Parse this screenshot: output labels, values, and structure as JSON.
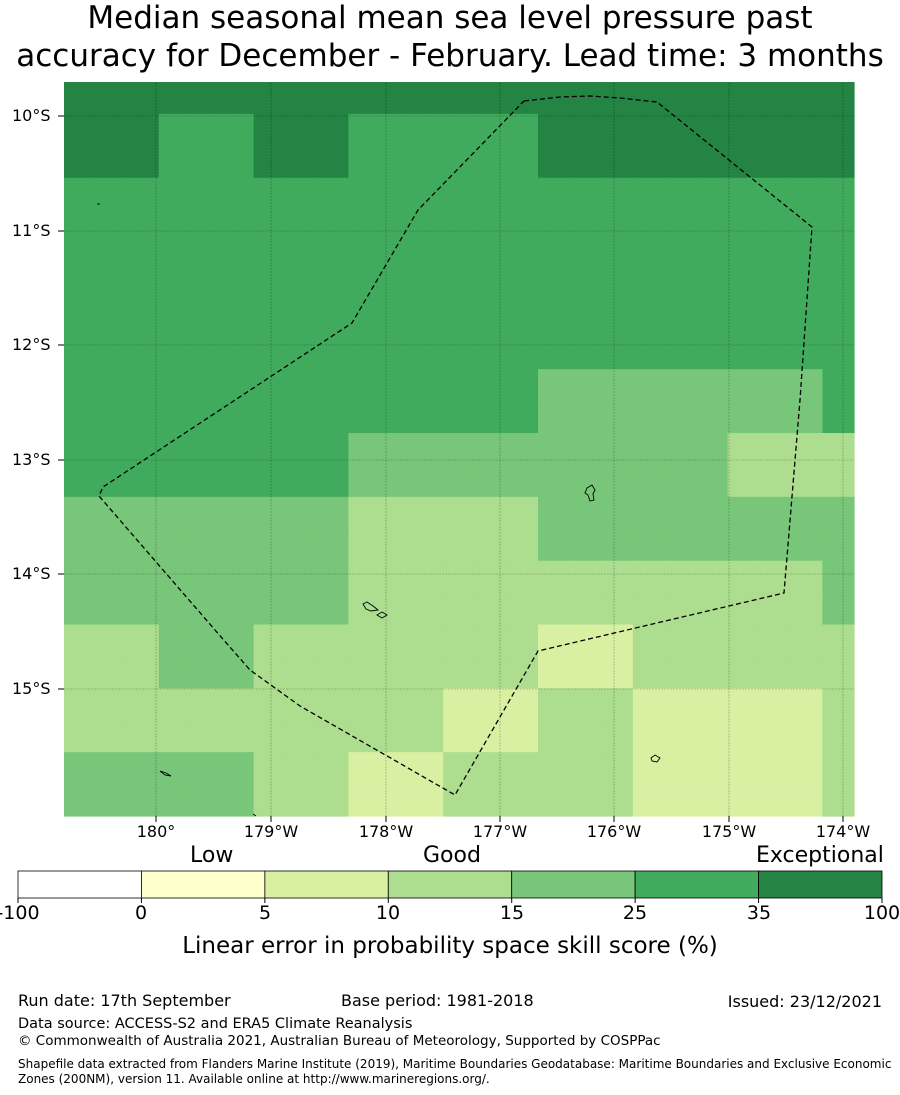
{
  "title": {
    "line1": "Median seasonal mean sea level pressure past",
    "line2": "accuracy for December - February. Lead time: 3 months"
  },
  "map": {
    "lat_labels": [
      "10°S",
      "11°S",
      "12°S",
      "13°S",
      "14°S",
      "15°S"
    ],
    "lon_labels": [
      "180°",
      "179°W",
      "178°W",
      "177°W",
      "176°W",
      "175°W",
      "174°W"
    ],
    "grid": [
      [
        6,
        6,
        6,
        6,
        6,
        6,
        6,
        6,
        6,
        6,
        6,
        6,
        6,
        6,
        6,
        6,
        6,
        6,
        6,
        6,
        6,
        6,
        6,
        6,
        6
      ],
      [
        6,
        6,
        6,
        5,
        5,
        5,
        6,
        6,
        6,
        5,
        5,
        5,
        5,
        5,
        5,
        6,
        6,
        6,
        6,
        6,
        6,
        6,
        6,
        6,
        6
      ],
      [
        6,
        6,
        6,
        5,
        5,
        5,
        6,
        6,
        6,
        5,
        5,
        5,
        5,
        5,
        5,
        6,
        6,
        6,
        6,
        6,
        6,
        6,
        6,
        6,
        6
      ],
      [
        5,
        5,
        5,
        5,
        5,
        5,
        5,
        5,
        5,
        5,
        5,
        5,
        5,
        5,
        5,
        5,
        5,
        5,
        5,
        5,
        5,
        5,
        5,
        5,
        5
      ],
      [
        5,
        5,
        5,
        5,
        5,
        5,
        5,
        5,
        5,
        5,
        5,
        5,
        5,
        5,
        5,
        5,
        5,
        5,
        5,
        5,
        5,
        5,
        5,
        5,
        5
      ],
      [
        5,
        5,
        5,
        5,
        5,
        5,
        5,
        5,
        5,
        5,
        5,
        5,
        5,
        5,
        5,
        5,
        5,
        5,
        5,
        5,
        5,
        5,
        5,
        5,
        5
      ],
      [
        5,
        5,
        5,
        5,
        5,
        5,
        5,
        5,
        5,
        5,
        5,
        5,
        5,
        5,
        5,
        5,
        5,
        5,
        5,
        5,
        5,
        5,
        5,
        5,
        5
      ],
      [
        5,
        5,
        5,
        5,
        5,
        5,
        5,
        5,
        5,
        5,
        5,
        5,
        5,
        5,
        5,
        5,
        5,
        5,
        5,
        5,
        5,
        5,
        5,
        5,
        5
      ],
      [
        5,
        5,
        5,
        5,
        5,
        5,
        5,
        5,
        5,
        5,
        5,
        5,
        5,
        5,
        5,
        5,
        5,
        5,
        5,
        5,
        5,
        5,
        5,
        5,
        5
      ],
      [
        5,
        5,
        5,
        5,
        5,
        5,
        5,
        5,
        5,
        5,
        5,
        5,
        5,
        5,
        5,
        4,
        4,
        4,
        4,
        4,
        4,
        4,
        4,
        4,
        5
      ],
      [
        5,
        5,
        5,
        5,
        5,
        5,
        5,
        5,
        5,
        5,
        5,
        5,
        5,
        5,
        5,
        4,
        4,
        4,
        4,
        4,
        4,
        4,
        4,
        4,
        5
      ],
      [
        5,
        5,
        5,
        5,
        5,
        5,
        5,
        5,
        5,
        4,
        4,
        4,
        4,
        4,
        4,
        4,
        4,
        4,
        4,
        4,
        4,
        3,
        3,
        3,
        3
      ],
      [
        5,
        5,
        5,
        5,
        5,
        5,
        5,
        5,
        5,
        4,
        4,
        4,
        4,
        4,
        4,
        4,
        4,
        4,
        4,
        4,
        4,
        3,
        3,
        3,
        3
      ],
      [
        4,
        4,
        4,
        4,
        4,
        4,
        4,
        4,
        4,
        3,
        3,
        3,
        3,
        3,
        3,
        4,
        4,
        4,
        4,
        4,
        4,
        4,
        4,
        4,
        4
      ],
      [
        4,
        4,
        4,
        4,
        4,
        4,
        4,
        4,
        4,
        3,
        3,
        3,
        3,
        3,
        3,
        4,
        4,
        4,
        4,
        4,
        4,
        4,
        4,
        4,
        4
      ],
      [
        4,
        4,
        4,
        4,
        4,
        4,
        4,
        4,
        4,
        3,
        3,
        3,
        3,
        3,
        3,
        3,
        3,
        3,
        3,
        3,
        3,
        3,
        3,
        3,
        4
      ],
      [
        4,
        4,
        4,
        4,
        4,
        4,
        4,
        4,
        4,
        3,
        3,
        3,
        3,
        3,
        3,
        3,
        3,
        3,
        3,
        3,
        3,
        3,
        3,
        3,
        4
      ],
      [
        3,
        3,
        3,
        4,
        4,
        4,
        3,
        3,
        3,
        3,
        3,
        3,
        3,
        3,
        3,
        2,
        2,
        2,
        3,
        3,
        3,
        3,
        3,
        3,
        3
      ],
      [
        3,
        3,
        3,
        4,
        4,
        4,
        3,
        3,
        3,
        3,
        3,
        3,
        3,
        3,
        3,
        2,
        2,
        2,
        3,
        3,
        3,
        3,
        3,
        3,
        3
      ],
      [
        3,
        3,
        3,
        3,
        3,
        3,
        3,
        3,
        3,
        3,
        3,
        3,
        2,
        2,
        2,
        3,
        3,
        3,
        2,
        2,
        2,
        2,
        2,
        2,
        3
      ],
      [
        3,
        3,
        3,
        3,
        3,
        3,
        3,
        3,
        3,
        3,
        3,
        3,
        2,
        2,
        2,
        3,
        3,
        3,
        2,
        2,
        2,
        2,
        2,
        2,
        3
      ],
      [
        4,
        4,
        4,
        4,
        4,
        4,
        3,
        3,
        3,
        2,
        2,
        2,
        3,
        3,
        3,
        3,
        3,
        3,
        2,
        2,
        2,
        2,
        2,
        2,
        3
      ],
      [
        4,
        4,
        4,
        4,
        4,
        4,
        3,
        3,
        3,
        2,
        2,
        2,
        3,
        3,
        3,
        3,
        3,
        3,
        2,
        2,
        2,
        2,
        2,
        2,
        3
      ]
    ]
  },
  "colorbar": {
    "colors": [
      "#ffffff",
      "#ffffcc",
      "#d9f0a3",
      "#addd8e",
      "#78c679",
      "#41ab5d",
      "#238443"
    ],
    "ticks": [
      "-100",
      "0",
      "5",
      "10",
      "15",
      "25",
      "35",
      "100"
    ],
    "categories": [
      "Low",
      "Good",
      "Exceptional"
    ],
    "title": "Linear error in probability space skill score (%)"
  },
  "footer": {
    "run_date": "Run date: 17th September",
    "base_period": "Base period: 1981-2018",
    "issued": "Issued: 23/12/2021",
    "data_source": "Data source: ACCESS-S2 and ERA5 Climate Reanalysis",
    "copyright": "© Commonwealth of Australia 2021, Australian Bureau of Meteorology, Supported by COSPPac",
    "shapefile_note": "Shapefile data extracted from Flanders Marine Institute (2019), Maritime Boundaries Geodatabase: Maritime Boundaries and Exclusive Economic Zones (200NM), version 11. Available online at http://www.marineregions.org/."
  }
}
